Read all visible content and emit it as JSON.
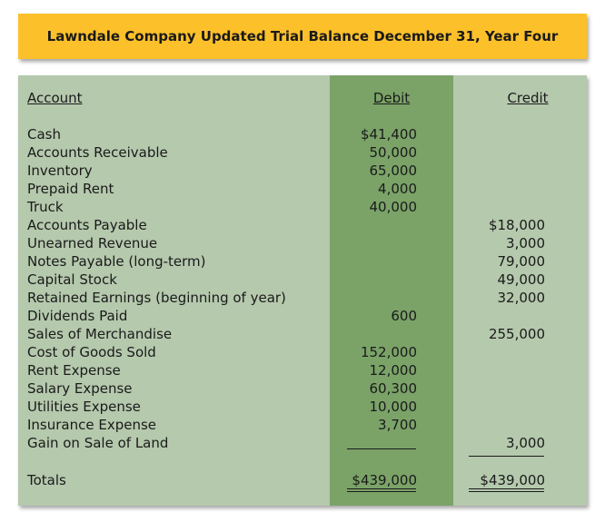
{
  "title": "Lawndale Company Updated Trial Balance December 31, Year Four",
  "headers": {
    "account": "Account",
    "debit": "Debit",
    "credit": "Credit"
  },
  "rows": [
    {
      "account": "Cash",
      "debit": "$41,400",
      "credit": ""
    },
    {
      "account": "Accounts Receivable",
      "debit": "50,000",
      "credit": ""
    },
    {
      "account": "Inventory",
      "debit": "65,000",
      "credit": ""
    },
    {
      "account": "Prepaid Rent",
      "debit": "4,000",
      "credit": ""
    },
    {
      "account": "Truck",
      "debit": "40,000",
      "credit": ""
    },
    {
      "account": "Accounts Payable",
      "debit": "",
      "credit": "$18,000"
    },
    {
      "account": "Unearned Revenue",
      "debit": "",
      "credit": "3,000"
    },
    {
      "account": "Notes Payable (long-term)",
      "debit": "",
      "credit": "79,000"
    },
    {
      "account": "Capital Stock",
      "debit": "",
      "credit": "49,000"
    },
    {
      "account": "Retained Earnings (beginning of year)",
      "debit": "",
      "credit": "32,000"
    },
    {
      "account": "Dividends Paid",
      "debit": "600",
      "credit": ""
    },
    {
      "account": "Sales of Merchandise",
      "debit": "",
      "credit": "255,000"
    },
    {
      "account": "Cost of Goods Sold",
      "debit": "152,000",
      "credit": ""
    },
    {
      "account": "Rent Expense",
      "debit": "12,000",
      "credit": ""
    },
    {
      "account": "Salary Expense",
      "debit": "60,300",
      "credit": ""
    },
    {
      "account": "Utilities Expense",
      "debit": "10,000",
      "credit": ""
    },
    {
      "account": "Insurance Expense",
      "debit": "3,700",
      "credit": ""
    },
    {
      "account": "Gain on Sale of Land",
      "debit": "",
      "credit": "3,000"
    }
  ],
  "totals": {
    "label": "Totals",
    "debit": "$439,000",
    "credit": "$439,000"
  },
  "colors": {
    "title_bar": "#fcc02a",
    "panel": "#b5c9ad",
    "debit_column": "#7ba368"
  }
}
